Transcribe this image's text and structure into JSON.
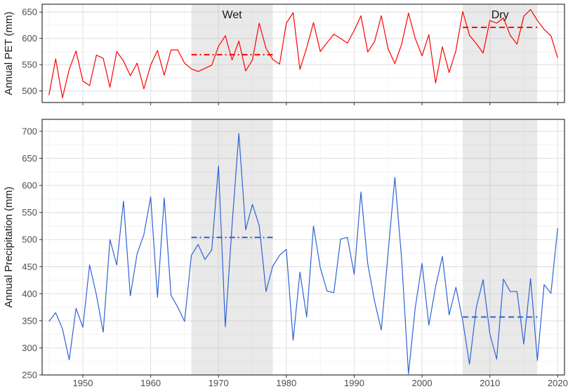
{
  "chart_data": [
    {
      "type": "line",
      "panel": "top",
      "ylabel": "Annual PET (mm)",
      "xlim": [
        1944,
        2021
      ],
      "ylim": [
        478,
        665
      ],
      "yticks": [
        500,
        550,
        600,
        650
      ],
      "xticks": [
        1950,
        1960,
        1970,
        1980,
        1990,
        2000,
        2010,
        2020
      ],
      "grid": true,
      "line_color": "#ff0000",
      "shaded_periods": [
        {
          "label": "Wet",
          "start": 1966,
          "end": 1978,
          "mean": 569,
          "line_style": "dashdot"
        },
        {
          "label": "Dry",
          "start": 2006,
          "end": 2017,
          "mean": 621,
          "line_style": "dashed"
        }
      ],
      "series": [
        {
          "x": [
            1945,
            1946,
            1947,
            1948,
            1949,
            1950,
            1951,
            1952,
            1953,
            1954,
            1955,
            1956,
            1957,
            1958,
            1959,
            1960,
            1961,
            1962,
            1963,
            1964,
            1965,
            1966,
            1967,
            1968,
            1969,
            1970,
            1971,
            1972,
            1973,
            1974,
            1975,
            1976,
            1977,
            1978,
            1979,
            1980,
            1981,
            1982,
            1983,
            1984,
            1985,
            1986,
            1987,
            1988,
            1989,
            1990,
            1991,
            1992,
            1993,
            1994,
            1995,
            1996,
            1997,
            1998,
            1999,
            2000,
            2001,
            2002,
            2003,
            2004,
            2005,
            2006,
            2007,
            2008,
            2009,
            2010,
            2011,
            2012,
            2013,
            2014,
            2015,
            2016,
            2017,
            2018,
            2019,
            2020
          ],
          "values": [
            492,
            561,
            487,
            541,
            576,
            519,
            510,
            568,
            562,
            507,
            575,
            557,
            529,
            553,
            504,
            549,
            577,
            530,
            578,
            578,
            553,
            542,
            537,
            543,
            549,
            585,
            605,
            559,
            595,
            538,
            559,
            629,
            581,
            560,
            551,
            629,
            649,
            541,
            582,
            630,
            575,
            592,
            608,
            600,
            591,
            615,
            643,
            574,
            594,
            643,
            580,
            552,
            589,
            648,
            600,
            567,
            607,
            515,
            584,
            535,
            577,
            651,
            606,
            590,
            572,
            634,
            629,
            639,
            606,
            589,
            642,
            655,
            634,
            617,
            605,
            563
          ]
        }
      ]
    },
    {
      "type": "line",
      "panel": "bottom",
      "ylabel": "Annual Precipitation (mm)",
      "xlim": [
        1944,
        2021
      ],
      "ylim": [
        250,
        722
      ],
      "yticks": [
        250,
        300,
        350,
        400,
        450,
        500,
        550,
        600,
        650,
        700
      ],
      "xticks": [
        1950,
        1960,
        1970,
        1980,
        1990,
        2000,
        2010,
        2020
      ],
      "grid": true,
      "line_color": "#2f63d6",
      "shaded_periods": [
        {
          "label": "Wet",
          "start": 1966,
          "end": 1978,
          "mean": 504,
          "line_style": "dashdot"
        },
        {
          "label": "Dry",
          "start": 2006,
          "end": 2017,
          "mean": 357,
          "line_style": "dashed"
        }
      ],
      "series": [
        {
          "x": [
            1945,
            1946,
            1947,
            1948,
            1949,
            1950,
            1951,
            1952,
            1953,
            1954,
            1955,
            1956,
            1957,
            1958,
            1959,
            1960,
            1961,
            1962,
            1963,
            1964,
            1965,
            1966,
            1967,
            1968,
            1969,
            1970,
            1971,
            1972,
            1973,
            1974,
            1975,
            1976,
            1977,
            1978,
            1979,
            1980,
            1981,
            1982,
            1983,
            1984,
            1985,
            1986,
            1987,
            1988,
            1989,
            1990,
            1991,
            1992,
            1993,
            1994,
            1995,
            1996,
            1997,
            1998,
            1999,
            2000,
            2001,
            2002,
            2003,
            2004,
            2005,
            2006,
            2007,
            2008,
            2009,
            2010,
            2011,
            2012,
            2013,
            2014,
            2015,
            2016,
            2017,
            2018,
            2019,
            2020
          ],
          "values": [
            349,
            365,
            335,
            278,
            373,
            338,
            453,
            398,
            329,
            500,
            453,
            571,
            396,
            474,
            509,
            579,
            393,
            577,
            397,
            375,
            349,
            471,
            491,
            463,
            481,
            636,
            339,
            526,
            696,
            518,
            565,
            526,
            404,
            451,
            471,
            482,
            314,
            440,
            357,
            525,
            448,
            405,
            402,
            501,
            504,
            436,
            588,
            455,
            386,
            333,
            476,
            615,
            463,
            252,
            374,
            456,
            342,
            413,
            469,
            361,
            412,
            350,
            270,
            375,
            426,
            326,
            279,
            427,
            404,
            404,
            307,
            428,
            277,
            417,
            401,
            521
          ]
        }
      ]
    }
  ]
}
